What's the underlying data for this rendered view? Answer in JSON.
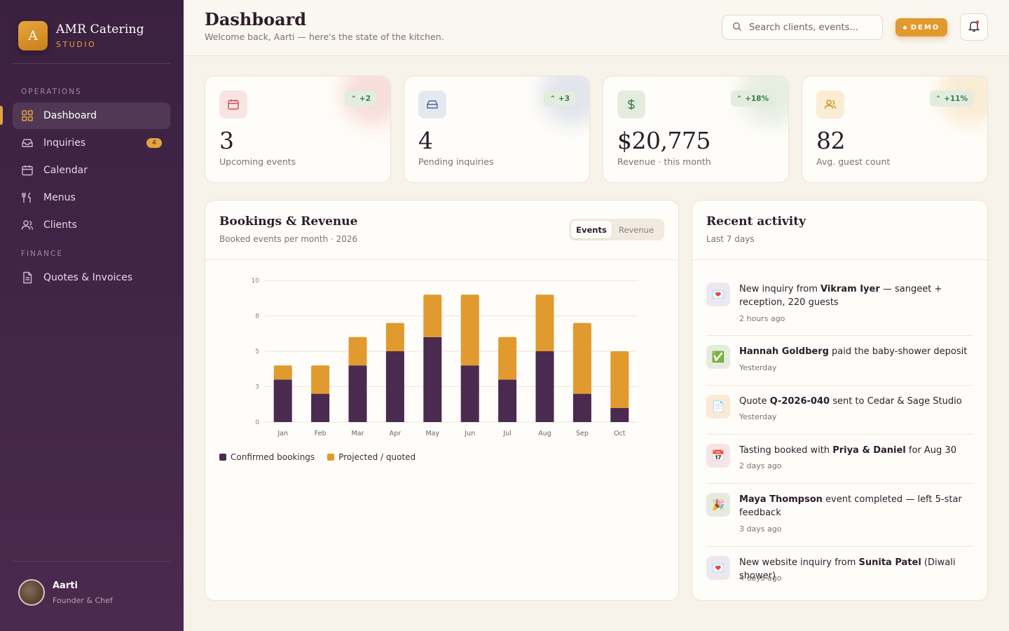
{
  "brand": {
    "initial": "A",
    "name": "AMR Catering",
    "sub": "STUDIO"
  },
  "sidebar": {
    "sections": [
      "OPERATIONS",
      "FINANCE"
    ],
    "items": [
      {
        "label": "Dashboard",
        "icon": "grid-icon"
      },
      {
        "label": "Inquiries",
        "icon": "inbox-icon",
        "badge": "4"
      },
      {
        "label": "Calendar",
        "icon": "calendar-icon"
      },
      {
        "label": "Menus",
        "icon": "utensils-icon"
      },
      {
        "label": "Clients",
        "icon": "users-icon"
      },
      {
        "label": "Quotes & Invoices",
        "icon": "document-icon"
      }
    ]
  },
  "user": {
    "name": "Aarti",
    "role": "Founder & Chef"
  },
  "header": {
    "title": "Dashboard",
    "subtitle": "Welcome back, Aarti — here's the state of the kitchen.",
    "search_placeholder": "Search clients, events...",
    "demo_label": "DEMO"
  },
  "stats": [
    {
      "value": "3",
      "label": "Upcoming events",
      "delta": "+2",
      "icon": "calendar-icon",
      "accent": "#c8505a",
      "icon_bg": "#f7e4e3"
    },
    {
      "value": "4",
      "label": "Pending inquiries",
      "delta": "+3",
      "icon": "inbox-icon",
      "accent": "#4a6890",
      "icon_bg": "#e4e9f1"
    },
    {
      "value": "$20,775",
      "label": "Revenue · this month",
      "delta": "+18%",
      "icon": "dollar-icon",
      "accent": "#3f7a4a",
      "icon_bg": "#e3ecdf"
    },
    {
      "value": "82",
      "label": "Avg. guest count",
      "delta": "+11%",
      "icon": "users-icon",
      "accent": "#d08a22",
      "icon_bg": "#fbecd4"
    }
  ],
  "chart_card": {
    "title": "Bookings & Revenue",
    "subtitle": "Booked events per month · 2026",
    "toggle": [
      "Events",
      "Revenue"
    ]
  },
  "chart_data": {
    "type": "bar",
    "stacked": true,
    "categories": [
      "Jan",
      "Feb",
      "Mar",
      "Apr",
      "May",
      "Jun",
      "Jul",
      "Aug",
      "Sep",
      "Oct"
    ],
    "series": [
      {
        "name": "Confirmed bookings",
        "color": "#4a2a4e",
        "values": [
          3,
          2,
          4,
          5,
          6,
          4,
          3,
          5,
          2,
          1
        ]
      },
      {
        "name": "Projected / quoted",
        "color": "#e19a2e",
        "values": [
          1,
          2,
          2,
          2,
          3,
          5,
          3,
          4,
          5,
          4
        ]
      }
    ],
    "yticks": [
      "0",
      "3",
      "5",
      "8",
      "10"
    ],
    "ylim": [
      0,
      10
    ],
    "grid": true,
    "legend": "bottom-left"
  },
  "activity": {
    "title": "Recent activity",
    "subtitle": "Last 7 days",
    "items": [
      {
        "icon": "💌",
        "icon_bg": "#ece8ef",
        "pre": "New inquiry from ",
        "strong": "Vikram Iyer",
        "post": " — sangeet + reception, 220 guests",
        "time": "2 hours ago"
      },
      {
        "icon": "✅",
        "icon_bg": "#e3ecdf",
        "pre": "",
        "strong": "Hannah Goldberg",
        "post": " paid the baby-shower deposit",
        "time": "Yesterday"
      },
      {
        "icon": "📄",
        "icon_bg": "#f9e9d6",
        "pre": "Quote ",
        "strong": "Q-2026-040",
        "post": " sent to Cedar & Sage Studio",
        "time": "Yesterday"
      },
      {
        "icon": "📅",
        "icon_bg": "#f6e5e4",
        "pre": "Tasting booked with ",
        "strong": "Priya & Daniel",
        "post": " for Aug 30",
        "time": "2 days ago"
      },
      {
        "icon": "🎉",
        "icon_bg": "#e6ebe1",
        "pre": "",
        "strong": "Maya Thompson",
        "post": " event completed — left 5-star feedback",
        "time": "3 days ago"
      },
      {
        "icon": "💌",
        "icon_bg": "#ece8ef",
        "pre": "New website inquiry from ",
        "strong": "Sunita Patel",
        "post": " (Diwali shower)",
        "time": "4 days ago"
      }
    ]
  }
}
